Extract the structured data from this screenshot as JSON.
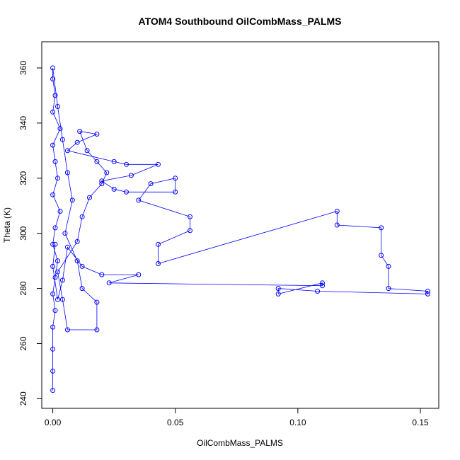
{
  "chart_data": {
    "type": "scatter",
    "title": "ATOM4 Southbound OilCombMass_PALMS",
    "xlabel": "OilCombMass_PALMS",
    "ylabel": "Theta (K)",
    "xlim": [
      -0.0045,
      0.1575
    ],
    "ylim": [
      236.5,
      369.5
    ],
    "x_ticks": [
      0.0,
      0.05,
      0.1,
      0.15
    ],
    "x_tick_labels": [
      "0.00",
      "0.05",
      "0.10",
      "0.15"
    ],
    "y_ticks": [
      240,
      260,
      280,
      300,
      320,
      340,
      360
    ],
    "y_tick_labels": [
      "240",
      "260",
      "280",
      "300",
      "320",
      "340",
      "360"
    ],
    "grid": false,
    "legend": "none",
    "series": [
      {
        "color": "#0000ff",
        "marker": "open-circle",
        "connected": true,
        "points": [
          [
            0.0,
            243
          ],
          [
            0.0,
            250
          ],
          [
            0.0,
            258
          ],
          [
            0.0,
            266
          ],
          [
            0.001,
            272
          ],
          [
            0.0,
            278
          ],
          [
            0.001,
            284
          ],
          [
            0.002,
            290
          ],
          [
            0.0,
            296
          ],
          [
            0.001,
            302
          ],
          [
            0.003,
            308
          ],
          [
            0.0,
            314
          ],
          [
            0.002,
            320
          ],
          [
            0.001,
            326
          ],
          [
            0.0,
            332
          ],
          [
            0.003,
            338
          ],
          [
            0.0,
            344
          ],
          [
            0.001,
            350
          ],
          [
            0.0,
            356
          ],
          [
            0.0,
            360
          ],
          [
            0.002,
            346
          ],
          [
            0.004,
            334
          ],
          [
            0.006,
            322
          ],
          [
            0.008,
            312
          ],
          [
            0.005,
            300
          ],
          [
            0.01,
            290
          ],
          [
            0.012,
            280
          ],
          [
            0.018,
            275
          ],
          [
            0.018,
            265
          ],
          [
            0.006,
            265
          ],
          [
            0.004,
            276
          ],
          [
            0.002,
            286
          ],
          [
            0.01,
            297
          ],
          [
            0.012,
            306
          ],
          [
            0.015,
            313
          ],
          [
            0.02,
            318
          ],
          [
            0.022,
            322
          ],
          [
            0.018,
            326
          ],
          [
            0.014,
            330
          ],
          [
            0.011,
            337
          ],
          [
            0.018,
            336
          ],
          [
            0.01,
            333
          ],
          [
            0.006,
            330
          ],
          [
            0.025,
            326
          ],
          [
            0.03,
            325
          ],
          [
            0.043,
            325
          ],
          [
            0.032,
            321
          ],
          [
            0.02,
            319
          ],
          [
            0.025,
            316
          ],
          [
            0.03,
            315
          ],
          [
            0.05,
            315
          ],
          [
            0.05,
            320
          ],
          [
            0.04,
            318
          ],
          [
            0.035,
            312
          ],
          [
            0.056,
            306
          ],
          [
            0.056,
            301
          ],
          [
            0.043,
            296
          ],
          [
            0.043,
            289
          ],
          [
            0.116,
            308
          ],
          [
            0.116,
            303
          ],
          [
            0.134,
            302
          ],
          [
            0.134,
            292
          ],
          [
            0.137,
            288
          ],
          [
            0.137,
            280
          ],
          [
            0.153,
            279
          ],
          [
            0.153,
            278
          ],
          [
            0.108,
            279
          ],
          [
            0.092,
            280
          ],
          [
            0.092,
            278
          ],
          [
            0.11,
            282
          ],
          [
            0.11,
            281
          ],
          [
            0.023,
            282
          ],
          [
            0.035,
            285
          ],
          [
            0.02,
            285
          ],
          [
            0.012,
            288
          ],
          [
            0.006,
            295
          ],
          [
            0.004,
            283
          ],
          [
            0.002,
            276
          ],
          [
            0.0,
            288
          ],
          [
            0.001,
            296
          ]
        ]
      }
    ]
  }
}
